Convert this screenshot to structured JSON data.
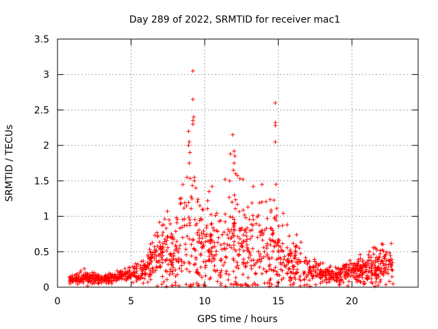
{
  "chart_data": {
    "type": "scatter",
    "title": "Day 289 of 2022, SRMTID for receiver mac1",
    "xlabel": "GPS time / hours",
    "ylabel": "SRMTID / TECUs",
    "xlim": [
      0,
      24.5
    ],
    "ylim": [
      0,
      3.5
    ],
    "xticks": [
      0,
      5,
      10,
      15,
      20
    ],
    "yticks": [
      0,
      0.5,
      1,
      1.5,
      2,
      2.5,
      3,
      3.5
    ],
    "xtick_labels": [
      "0",
      "5",
      "10",
      "15",
      "20"
    ],
    "ytick_labels": [
      "0",
      "0.5",
      "1",
      "1.5",
      "2",
      "2.5",
      "3",
      "3.5"
    ],
    "grid": true,
    "marker": "+",
    "color": "#ff0000",
    "profile": [
      {
        "t": 0.8,
        "base": 0.1,
        "spread": 0.06
      },
      {
        "t": 2.0,
        "base": 0.14,
        "spread": 0.1
      },
      {
        "t": 3.0,
        "base": 0.11,
        "spread": 0.05
      },
      {
        "t": 4.0,
        "base": 0.14,
        "spread": 0.08
      },
      {
        "t": 5.0,
        "base": 0.2,
        "spread": 0.12
      },
      {
        "t": 6.0,
        "base": 0.22,
        "spread": 0.14
      },
      {
        "t": 7.0,
        "base": 0.5,
        "spread": 0.45
      },
      {
        "t": 8.0,
        "base": 0.5,
        "spread": 0.55
      },
      {
        "t": 9.0,
        "base": 0.6,
        "spread": 0.9
      },
      {
        "t": 10.0,
        "base": 0.6,
        "spread": 0.65
      },
      {
        "t": 11.0,
        "base": 0.55,
        "spread": 0.6
      },
      {
        "t": 12.0,
        "base": 0.65,
        "spread": 0.8
      },
      {
        "t": 13.0,
        "base": 0.5,
        "spread": 0.6
      },
      {
        "t": 14.0,
        "base": 0.6,
        "spread": 0.7
      },
      {
        "t": 15.0,
        "base": 0.5,
        "spread": 0.6
      },
      {
        "t": 16.0,
        "base": 0.35,
        "spread": 0.35
      },
      {
        "t": 17.0,
        "base": 0.25,
        "spread": 0.2
      },
      {
        "t": 18.0,
        "base": 0.18,
        "spread": 0.12
      },
      {
        "t": 19.0,
        "base": 0.16,
        "spread": 0.12
      },
      {
        "t": 20.0,
        "base": 0.2,
        "spread": 0.18
      },
      {
        "t": 21.0,
        "base": 0.25,
        "spread": 0.25
      },
      {
        "t": 22.0,
        "base": 0.3,
        "spread": 0.3
      },
      {
        "t": 22.8,
        "base": 0.35,
        "spread": 0.4
      }
    ],
    "samples": 1400,
    "peaks": [
      {
        "x": 9.2,
        "y": 3.05
      },
      {
        "x": 9.2,
        "y": 2.65
      },
      {
        "x": 9.25,
        "y": 2.4
      },
      {
        "x": 9.2,
        "y": 2.35
      },
      {
        "x": 9.2,
        "y": 2.3
      },
      {
        "x": 8.9,
        "y": 2.2
      },
      {
        "x": 8.95,
        "y": 2.05
      },
      {
        "x": 8.9,
        "y": 2.0
      },
      {
        "x": 9.0,
        "y": 1.9
      },
      {
        "x": 8.95,
        "y": 1.75
      },
      {
        "x": 8.8,
        "y": 1.55
      },
      {
        "x": 9.3,
        "y": 1.55
      },
      {
        "x": 9.3,
        "y": 1.5
      },
      {
        "x": 9.4,
        "y": 1.4
      },
      {
        "x": 11.9,
        "y": 2.15
      },
      {
        "x": 11.75,
        "y": 1.88
      },
      {
        "x": 12.0,
        "y": 1.92
      },
      {
        "x": 12.05,
        "y": 1.85
      },
      {
        "x": 12.0,
        "y": 1.75
      },
      {
        "x": 11.95,
        "y": 1.65
      },
      {
        "x": 12.1,
        "y": 1.6
      },
      {
        "x": 11.7,
        "y": 1.5
      },
      {
        "x": 14.8,
        "y": 2.6
      },
      {
        "x": 14.8,
        "y": 2.32
      },
      {
        "x": 14.8,
        "y": 2.28
      },
      {
        "x": 14.8,
        "y": 2.05
      },
      {
        "x": 14.85,
        "y": 1.45
      },
      {
        "x": 13.9,
        "y": 1.45
      },
      {
        "x": 13.3,
        "y": 1.42
      },
      {
        "x": 12.6,
        "y": 1.52
      },
      {
        "x": 10.5,
        "y": 1.42
      },
      {
        "x": 10.3,
        "y": 1.35
      }
    ]
  }
}
